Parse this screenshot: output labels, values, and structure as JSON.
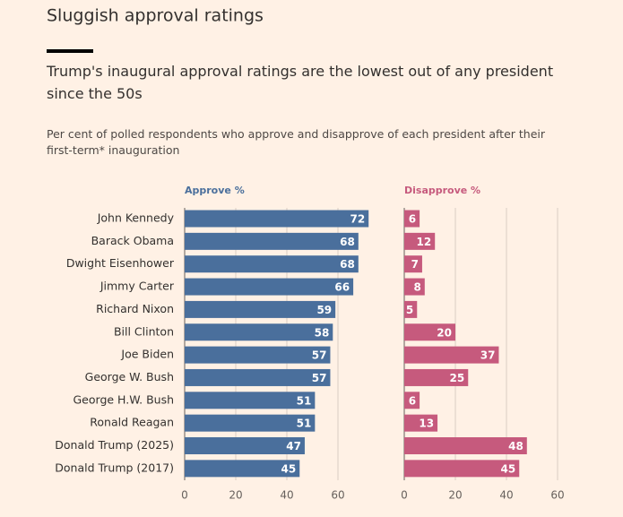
{
  "header": {
    "title": "Sluggish approval ratings",
    "subtitle": "Trump's inaugural approval ratings are the lowest out of any president since the 50s",
    "description": "Per cent of polled respondents who approve and disapprove of each president after their first-term* inauguration"
  },
  "chart_data": [
    {
      "type": "bar",
      "orientation": "horizontal",
      "categories": [
        "John Kennedy",
        "Barack Obama",
        "Dwight Eisenhower",
        "Jimmy Carter",
        "Richard Nixon",
        "Bill Clinton",
        "Joe Biden",
        "George W. Bush",
        "George H.W. Bush",
        "Ronald Reagan",
        "Donald Trump (2025)",
        "Donald Trump (2017)"
      ],
      "series": [
        {
          "name": "Approve %",
          "color": "#4a6f9c",
          "values": [
            72,
            68,
            68,
            66,
            59,
            58,
            57,
            57,
            51,
            51,
            47,
            45
          ]
        }
      ],
      "xlim": [
        0,
        75
      ],
      "xticks": [
        0,
        20,
        40,
        60
      ],
      "grid": true
    },
    {
      "type": "bar",
      "orientation": "horizontal",
      "series": [
        {
          "name": "Disapprove %",
          "color": "#c65a7d",
          "values": [
            6,
            12,
            7,
            8,
            5,
            20,
            37,
            25,
            6,
            13,
            48,
            45
          ]
        }
      ],
      "xlim": [
        0,
        60
      ],
      "xticks": [
        0,
        20,
        40,
        60
      ],
      "grid": true
    }
  ]
}
